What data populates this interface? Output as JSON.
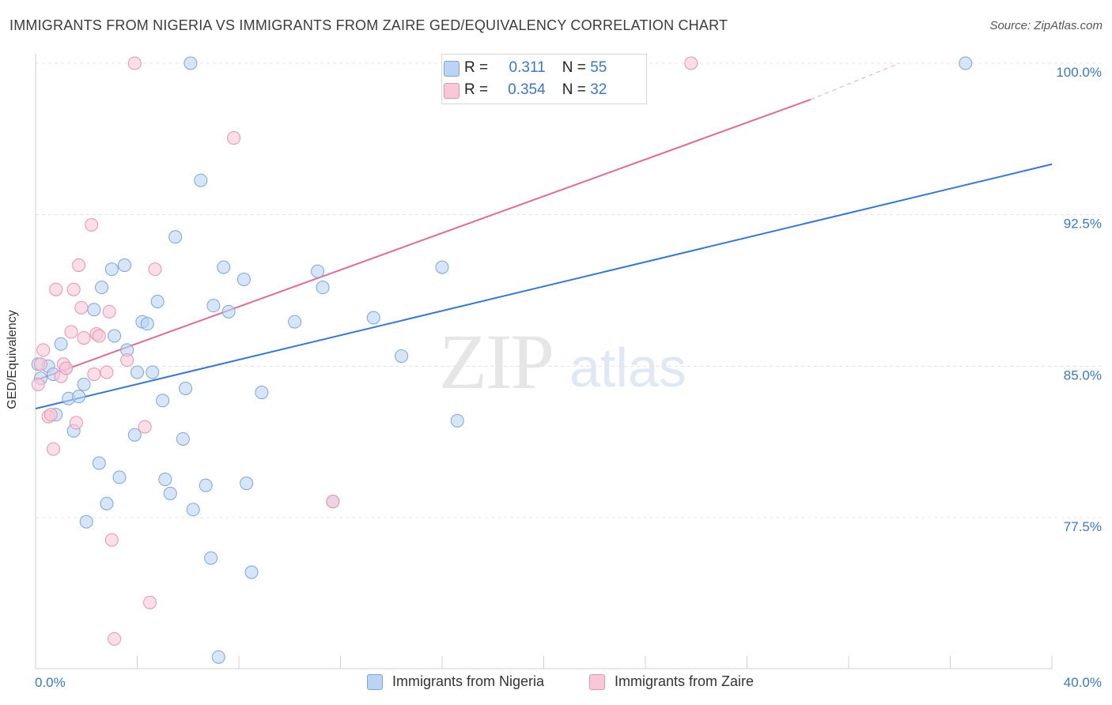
{
  "title": "IMMIGRANTS FROM NIGERIA VS IMMIGRANTS FROM ZAIRE GED/EQUIVALENCY CORRELATION CHART",
  "source": "Source: ZipAtlas.com",
  "watermark": {
    "zip": "ZIP",
    "atlas": "atlas"
  },
  "legend": {
    "rows": [
      {
        "r_label": "R =",
        "r_value": "0.311",
        "n_label": "N =",
        "n_value": "55"
      },
      {
        "r_label": "R =",
        "r_value": "0.354",
        "n_label": "N =",
        "n_value": "32"
      }
    ]
  },
  "bottom_legend": {
    "nigeria": "Immigrants from Nigeria",
    "zaire": "Immigrants from Zaire"
  },
  "colors": {
    "nigeria_fill": "#bcd4f3",
    "nigeria_stroke": "#7aa6dc",
    "nigeria_line": "#3677cf",
    "zaire_fill": "#f8c8d7",
    "zaire_stroke": "#e893ae",
    "zaire_line": "#e06b94",
    "axis_text": "#3a78c7",
    "grid": "#e3e3e3"
  },
  "chart_data": {
    "type": "scatter",
    "title": "IMMIGRANTS FROM NIGERIA VS IMMIGRANTS FROM ZAIRE GED/EQUIVALENCY CORRELATION CHART",
    "xlabel": "",
    "ylabel": "GED/Equivalency",
    "xlim": [
      0,
      40
    ],
    "ylim": [
      70.5,
      100.6
    ],
    "x_tick_labels": [
      "0.0%",
      "40.0%"
    ],
    "y_ticks": [
      77.5,
      85.0,
      92.5,
      100.0
    ],
    "y_tick_labels": [
      "77.5%",
      "85.0%",
      "92.5%",
      "100.0%"
    ],
    "series": [
      {
        "name": "Immigrants from Nigeria",
        "points": [
          [
            0.2,
            84.4
          ],
          [
            0.5,
            85.0
          ],
          [
            0.7,
            84.6
          ],
          [
            0.8,
            82.6
          ],
          [
            1.0,
            86.1
          ],
          [
            1.2,
            84.9
          ],
          [
            1.3,
            83.4
          ],
          [
            1.5,
            81.8
          ],
          [
            1.7,
            83.5
          ],
          [
            1.9,
            84.1
          ],
          [
            2.0,
            77.3
          ],
          [
            2.3,
            87.8
          ],
          [
            2.5,
            80.2
          ],
          [
            2.6,
            88.9
          ],
          [
            2.8,
            78.2
          ],
          [
            3.0,
            89.8
          ],
          [
            3.1,
            86.5
          ],
          [
            3.3,
            79.5
          ],
          [
            3.5,
            90.0
          ],
          [
            3.6,
            85.8
          ],
          [
            3.9,
            81.6
          ],
          [
            4.0,
            84.7
          ],
          [
            4.2,
            87.2
          ],
          [
            4.4,
            87.1
          ],
          [
            4.6,
            84.7
          ],
          [
            4.8,
            88.2
          ],
          [
            5.0,
            83.3
          ],
          [
            5.1,
            79.4
          ],
          [
            5.3,
            78.7
          ],
          [
            5.5,
            91.4
          ],
          [
            5.8,
            81.4
          ],
          [
            5.9,
            83.9
          ],
          [
            6.1,
            100.0
          ],
          [
            6.2,
            77.9
          ],
          [
            6.5,
            94.2
          ],
          [
            6.7,
            79.1
          ],
          [
            6.9,
            75.5
          ],
          [
            7.0,
            88.0
          ],
          [
            7.2,
            70.6
          ],
          [
            7.4,
            89.9
          ],
          [
            7.6,
            87.7
          ],
          [
            8.2,
            89.3
          ],
          [
            8.3,
            79.2
          ],
          [
            8.5,
            74.8
          ],
          [
            8.9,
            83.7
          ],
          [
            10.2,
            87.2
          ],
          [
            11.1,
            89.7
          ],
          [
            11.3,
            88.9
          ],
          [
            11.7,
            78.3
          ],
          [
            13.3,
            87.4
          ],
          [
            14.4,
            85.5
          ],
          [
            16.0,
            89.9
          ],
          [
            16.6,
            82.3
          ],
          [
            36.6,
            100.0
          ],
          [
            0.1,
            85.1
          ]
        ]
      },
      {
        "name": "Immigrants from Zaire",
        "points": [
          [
            0.1,
            84.1
          ],
          [
            0.2,
            85.1
          ],
          [
            0.3,
            85.8
          ],
          [
            0.5,
            82.5
          ],
          [
            0.6,
            82.6
          ],
          [
            0.7,
            80.9
          ],
          [
            0.8,
            88.8
          ],
          [
            1.0,
            84.5
          ],
          [
            1.1,
            85.1
          ],
          [
            1.2,
            84.9
          ],
          [
            1.4,
            86.7
          ],
          [
            1.5,
            88.8
          ],
          [
            1.6,
            82.2
          ],
          [
            1.7,
            90.0
          ],
          [
            1.8,
            87.9
          ],
          [
            1.9,
            86.4
          ],
          [
            2.2,
            92.0
          ],
          [
            2.3,
            84.6
          ],
          [
            2.4,
            86.6
          ],
          [
            2.5,
            86.5
          ],
          [
            2.8,
            84.7
          ],
          [
            2.9,
            87.7
          ],
          [
            3.0,
            76.4
          ],
          [
            3.1,
            71.5
          ],
          [
            3.6,
            85.3
          ],
          [
            3.9,
            100.0
          ],
          [
            4.3,
            82.0
          ],
          [
            4.5,
            73.3
          ],
          [
            4.7,
            89.8
          ],
          [
            7.8,
            96.3
          ],
          [
            11.7,
            78.3
          ],
          [
            25.8,
            100.0
          ]
        ]
      }
    ],
    "trendlines": [
      {
        "name": "Immigrants from Nigeria",
        "x": [
          0,
          40
        ],
        "y": [
          82.9,
          95.0
        ]
      },
      {
        "name": "Immigrants from Zaire",
        "x": [
          0,
          30.5
        ],
        "y": [
          84.3,
          98.2
        ],
        "dashed_extension": {
          "x": [
            30.5,
            34.0
          ],
          "y": [
            98.2,
            100.0
          ]
        }
      }
    ]
  }
}
